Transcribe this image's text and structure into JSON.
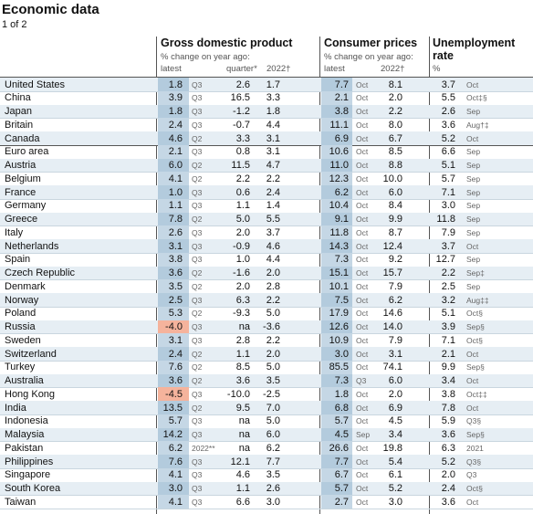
{
  "header": {
    "title": "Economic data",
    "page": "1 of 2"
  },
  "columns": {
    "gdp": {
      "title": "Gross domestic product",
      "subtitle": "% change on year ago:",
      "latest": "latest",
      "quarter": "quarter*",
      "year": "2022†"
    },
    "cpi": {
      "title": "Consumer prices",
      "subtitle": "% change on year ago:",
      "latest": "latest",
      "year": "2022†"
    },
    "unemployment": {
      "title": "Unemployment rate",
      "unit": "%"
    }
  },
  "table": {
    "groups": [
      {
        "rows": [
          [
            "United States",
            "1.8",
            "Q3",
            "2.6",
            "1.7",
            "7.7",
            "Oct",
            "8.1",
            "3.7",
            "Oct"
          ],
          [
            "China",
            "3.9",
            "Q3",
            "16.5",
            "3.3",
            "2.1",
            "Oct",
            "2.0",
            "5.5",
            "Oct‡§"
          ],
          [
            "Japan",
            "1.8",
            "Q3",
            "-1.2",
            "1.8",
            "3.8",
            "Oct",
            "2.2",
            "2.6",
            "Sep"
          ],
          [
            "Britain",
            "2.4",
            "Q3",
            "-0.7",
            "4.4",
            "11.1",
            "Oct",
            "8.0",
            "3.6",
            "Aug†‡"
          ],
          [
            "Canada",
            "4.6",
            "Q2",
            "3.3",
            "3.1",
            "6.9",
            "Oct",
            "6.7",
            "5.2",
            "Oct"
          ]
        ]
      },
      {
        "rows": [
          [
            "Euro area",
            "2.1",
            "Q3",
            "0.8",
            "3.1",
            "10.6",
            "Oct",
            "8.5",
            "6.6",
            "Sep"
          ],
          [
            "Austria",
            "6.0",
            "Q2",
            "11.5",
            "4.7",
            "11.0",
            "Oct",
            "8.8",
            "5.1",
            "Sep"
          ],
          [
            "Belgium",
            "4.1",
            "Q2",
            "2.2",
            "2.2",
            "12.3",
            "Oct",
            "10.0",
            "5.7",
            "Sep"
          ],
          [
            "France",
            "1.0",
            "Q3",
            "0.6",
            "2.4",
            "6.2",
            "Oct",
            "6.0",
            "7.1",
            "Sep"
          ],
          [
            "Germany",
            "1.1",
            "Q3",
            "1.1",
            "1.4",
            "10.4",
            "Oct",
            "8.4",
            "3.0",
            "Sep"
          ],
          [
            "Greece",
            "7.8",
            "Q2",
            "5.0",
            "5.5",
            "9.1",
            "Oct",
            "9.9",
            "11.8",
            "Sep"
          ],
          [
            "Italy",
            "2.6",
            "Q3",
            "2.0",
            "3.7",
            "11.8",
            "Oct",
            "8.7",
            "7.9",
            "Sep"
          ],
          [
            "Netherlands",
            "3.1",
            "Q3",
            "-0.9",
            "4.6",
            "14.3",
            "Oct",
            "12.4",
            "3.7",
            "Oct"
          ],
          [
            "Spain",
            "3.8",
            "Q3",
            "1.0",
            "4.4",
            "7.3",
            "Oct",
            "9.2",
            "12.7",
            "Sep"
          ]
        ]
      },
      {
        "rows": [
          [
            "Czech Republic",
            "3.6",
            "Q2",
            "-1.6",
            "2.0",
            "15.1",
            "Oct",
            "15.7",
            "2.2",
            "Sep‡"
          ],
          [
            "Denmark",
            "3.5",
            "Q2",
            "2.0",
            "2.8",
            "10.1",
            "Oct",
            "7.9",
            "2.5",
            "Sep"
          ],
          [
            "Norway",
            "2.5",
            "Q3",
            "6.3",
            "2.2",
            "7.5",
            "Oct",
            "6.2",
            "3.2",
            "Aug‡‡"
          ],
          [
            "Poland",
            "5.3",
            "Q2",
            "-9.3",
            "5.0",
            "17.9",
            "Oct",
            "14.6",
            "5.1",
            "Oct§"
          ],
          [
            "Russia",
            "-4.0",
            "Q3",
            "na",
            "-3.6",
            "12.6",
            "Oct",
            "14.0",
            "3.9",
            "Sep§"
          ],
          [
            "Sweden",
            "3.1",
            "Q3",
            "2.8",
            "2.2",
            "10.9",
            "Oct",
            "7.9",
            "7.1",
            "Oct§"
          ],
          [
            "Switzerland",
            "2.4",
            "Q2",
            "1.1",
            "2.0",
            "3.0",
            "Oct",
            "3.1",
            "2.1",
            "Oct"
          ],
          [
            "Turkey",
            "7.6",
            "Q2",
            "8.5",
            "5.0",
            "85.5",
            "Oct",
            "74.1",
            "9.9",
            "Sep§"
          ]
        ]
      },
      {
        "rows": [
          [
            "Australia",
            "3.6",
            "Q2",
            "3.6",
            "3.5",
            "7.3",
            "Q3",
            "6.0",
            "3.4",
            "Oct"
          ],
          [
            "Hong Kong",
            "-4.5",
            "Q3",
            "-10.0",
            "-2.5",
            "1.8",
            "Oct",
            "2.0",
            "3.8",
            "Oct‡‡"
          ],
          [
            "India",
            "13.5",
            "Q2",
            "9.5",
            "7.0",
            "6.8",
            "Oct",
            "6.9",
            "7.8",
            "Oct"
          ],
          [
            "Indonesia",
            "5.7",
            "Q3",
            "na",
            "5.0",
            "5.7",
            "Oct",
            "4.5",
            "5.9",
            "Q3§"
          ],
          [
            "Malaysia",
            "14.2",
            "Q3",
            "na",
            "6.0",
            "4.5",
            "Sep",
            "3.4",
            "3.6",
            "Sep§"
          ],
          [
            "Pakistan",
            "6.2",
            "2022**",
            "na",
            "6.2",
            "26.6",
            "Oct",
            "19.8",
            "6.3",
            "2021"
          ],
          [
            "Philippines",
            "7.6",
            "Q3",
            "12.1",
            "7.7",
            "7.7",
            "Oct",
            "5.4",
            "5.2",
            "Q3§"
          ],
          [
            "Singapore",
            "4.1",
            "Q3",
            "4.6",
            "3.5",
            "6.7",
            "Oct",
            "6.1",
            "2.0",
            "Q3"
          ],
          [
            "South Korea",
            "3.0",
            "Q3",
            "1.1",
            "2.6",
            "5.7",
            "Oct",
            "5.2",
            "2.4",
            "Oct§"
          ],
          [
            "Taiwan",
            "4.1",
            "Q3",
            "6.6",
            "3.0",
            "2.7",
            "Oct",
            "3.0",
            "3.6",
            "Oct"
          ]
        ]
      }
    ]
  }
}
